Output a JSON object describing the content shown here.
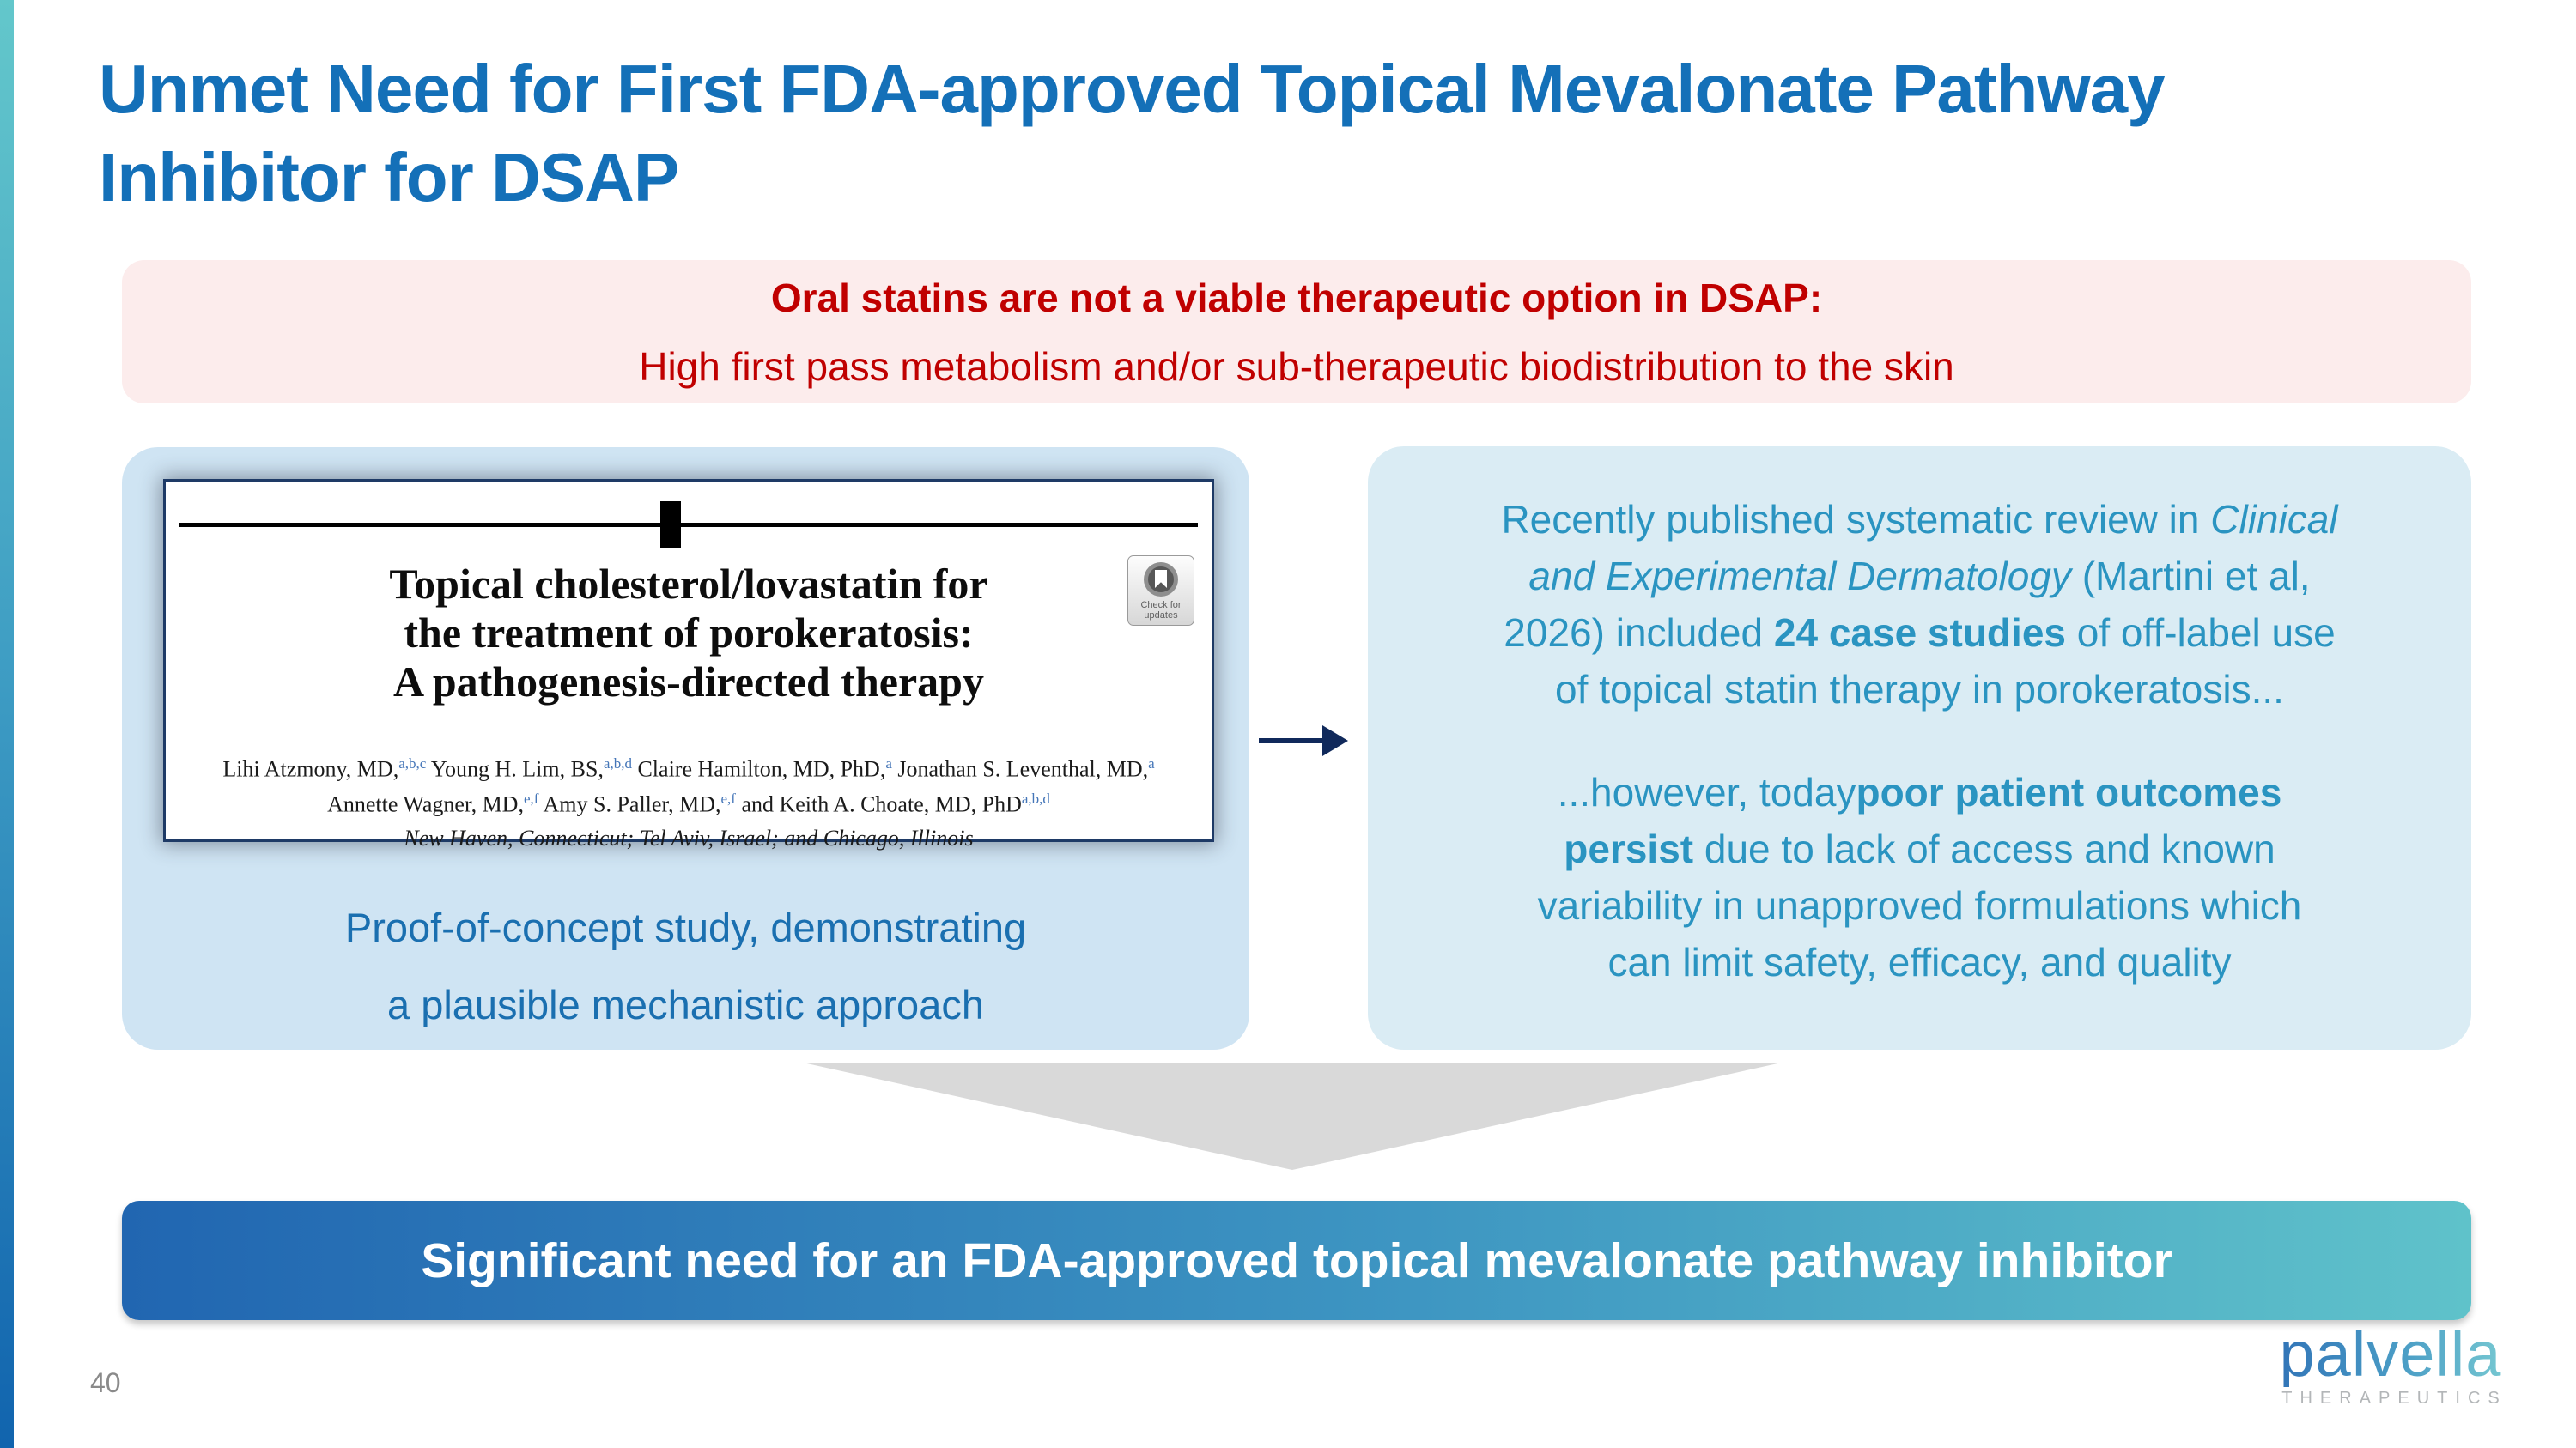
{
  "page_number": "40",
  "title": {
    "line1": "Unmet Need for First FDA-approved Topical Mevalonate Pathway",
    "line2": "Inhibitor for DSAP"
  },
  "alert_banner": {
    "headline": "Oral statins are not a viable therapeutic option in DSAP:",
    "subline": "High first pass metabolism and/or sub-therapeutic biodistribution to the skin"
  },
  "left_card": {
    "paper": {
      "title_line1": "Topical cholesterol/lovastatin for",
      "title_line2": "the treatment of porokeratosis:",
      "title_line3": "A pathogenesis-directed therapy",
      "badge_label_line1": "Check for",
      "badge_label_line2": "updates",
      "authors_line1": [
        {
          "text": "Lihi Atzmony, MD,"
        },
        {
          "text": "a,b,c",
          "sup": true
        },
        {
          "text": " Young H. Lim, BS,"
        },
        {
          "text": "a,b,d",
          "sup": true
        },
        {
          "text": " Claire Hamilton, MD, PhD,"
        },
        {
          "text": "a",
          "sup": true
        },
        {
          "text": " Jonathan S. Leventhal, MD,"
        },
        {
          "text": "a",
          "sup": true
        }
      ],
      "authors_line2": [
        {
          "text": "Annette Wagner, MD,"
        },
        {
          "text": "e,f",
          "sup": true
        },
        {
          "text": " Amy S. Paller, MD,"
        },
        {
          "text": "e,f",
          "sup": true
        },
        {
          "text": " and Keith A. Choate, MD, PhD"
        },
        {
          "text": "a,b,d",
          "sup": true
        }
      ],
      "affiliation": "New Haven, Connecticut; Tel Aviv, Israel; and Chicago, Illinois"
    },
    "caption_line1": "Proof-of-concept study, demonstrating",
    "caption_line2": "a plausible mechanistic approach"
  },
  "right_card": {
    "paragraph1": [
      {
        "text": "Recently published systematic review in "
      },
      {
        "text": "Clinical",
        "italic": true
      },
      {
        "br": true
      },
      {
        "text": "and Experimental Dermatology",
        "italic": true
      },
      {
        "text": " (Martini et al,"
      },
      {
        "br": true
      },
      {
        "text": "2026) included "
      },
      {
        "text": "24 case studies",
        "bold": true
      },
      {
        "text": " of off-label use"
      },
      {
        "br": true
      },
      {
        "text": "of topical statin therapy in porokeratosis..."
      }
    ],
    "paragraph2": [
      {
        "text": "...however, today"
      },
      {
        "text": "poor patient outcomes",
        "bold": true
      },
      {
        "br": true
      },
      {
        "text": "persist",
        "bold": true
      },
      {
        "text": " due to lack of access and known"
      },
      {
        "br": true
      },
      {
        "text": "variability in unapproved formulations which"
      },
      {
        "br": true
      },
      {
        "text": "can limit safety, efficacy, and quality"
      }
    ]
  },
  "conclusion_banner": {
    "label": "Significant need for an FDA-approved topical mevalonate pathway inhibitor"
  },
  "logo": {
    "name": "palvella",
    "tagline": "THERAPEUTICS"
  },
  "colors": {
    "title_blue": "#1470b8",
    "alert_red": "#c00000",
    "alert_bg": "#fcecec",
    "left_card_bg": "#cfe4f3",
    "right_card_bg": "#daecf4",
    "right_card_text": "#2a94c1",
    "caption_blue": "#1a6fb0",
    "arrow_navy": "#10295b",
    "triangle_gray": "#d9d9d9",
    "banner_gradient_start": "#2166b1",
    "banner_gradient_end": "#5fc2ca",
    "edge_bar_top": "#63c7cb",
    "edge_bar_bottom": "#1164ae"
  }
}
